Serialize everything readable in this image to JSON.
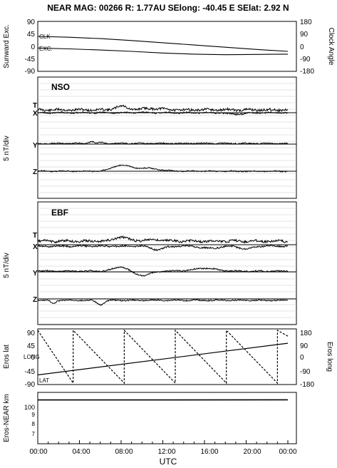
{
  "header": {
    "title": "NEAR MAG: 00266  R: 1.77AU  SElong:  -40.45 E  SElat:    2.92 N"
  },
  "colors": {
    "ink": "#000000",
    "grid": "#bdbdbd",
    "background": "#ffffff"
  },
  "chart_data": [
    {
      "id": "panel1",
      "type": "line",
      "ylabel_left": "Sunward Exc.",
      "ylabel_right": "Clock Angle",
      "yticks_left": [
        "90",
        "45",
        "0",
        "-45",
        "-90"
      ],
      "yticks_right": [
        "180",
        "90",
        "0",
        "-90",
        "-180"
      ],
      "ylim": [
        -90,
        90
      ],
      "annotations": [
        "CLK",
        "EXC."
      ],
      "series": [
        {
          "key": "clk",
          "x": [
            0,
            3,
            6,
            9,
            12,
            15,
            18,
            21,
            24
          ],
          "y": [
            36,
            33,
            28,
            21,
            13,
            5,
            -3,
            -11,
            -18
          ]
        },
        {
          "key": "exc",
          "x": [
            0,
            3,
            6,
            9,
            12,
            15,
            18,
            21,
            24
          ],
          "y": [
            -6,
            -9,
            -13,
            -18,
            -24,
            -28,
            -30,
            -29,
            -28
          ]
        }
      ]
    },
    {
      "id": "panel2",
      "type": "line",
      "label": "NSO",
      "ylabel_left": "5 nT/div",
      "trace_labels": [
        "T",
        "X",
        "Y",
        "Z"
      ],
      "units": "5 nT/div"
    },
    {
      "id": "panel3",
      "type": "line",
      "label": "EBF",
      "ylabel_left": "5 nT/div",
      "trace_labels": [
        "T",
        "X",
        "Y",
        "Z"
      ],
      "units": "5 nT/div"
    },
    {
      "id": "panel4",
      "type": "line",
      "ylabel_left": "Eros lat",
      "ylabel_right": "Eros long",
      "yticks_left": [
        "90",
        "45",
        "0",
        "-45",
        "-90"
      ],
      "yticks_right": [
        "180",
        "90",
        "0",
        "-90",
        "-180"
      ],
      "ylim": [
        -90,
        90
      ],
      "annotations": [
        "LONG",
        "LAT"
      ],
      "series": [
        {
          "key": "long",
          "x": [
            0,
            24
          ],
          "y": [
            -124,
            92
          ]
        },
        {
          "key": "lat",
          "x": [
            0,
            3.4,
            3.4,
            8.3,
            8.3,
            13.2,
            13.2,
            18.1,
            18.1,
            23,
            23,
            24
          ],
          "y": [
            90,
            -90,
            90,
            -90,
            90,
            -90,
            90,
            -90,
            90,
            -90,
            90,
            70
          ]
        }
      ]
    },
    {
      "id": "panel5",
      "type": "line",
      "ylabel_left": "Eros-NEAR km",
      "yticks_left": [
        "100",
        "9",
        "8",
        "7"
      ],
      "scale": "log",
      "ylim": [
        6,
        150
      ],
      "series": [
        {
          "key": "range",
          "x": [
            0,
            12,
            24
          ],
          "y": [
            100,
            100,
            101
          ]
        }
      ]
    }
  ],
  "xaxis": {
    "label": "UTC",
    "ticks": [
      "00:00",
      "04:00",
      "08:00",
      "12:00",
      "16:00",
      "20:00",
      "00:00"
    ],
    "xlim_hours": [
      0,
      24
    ]
  }
}
